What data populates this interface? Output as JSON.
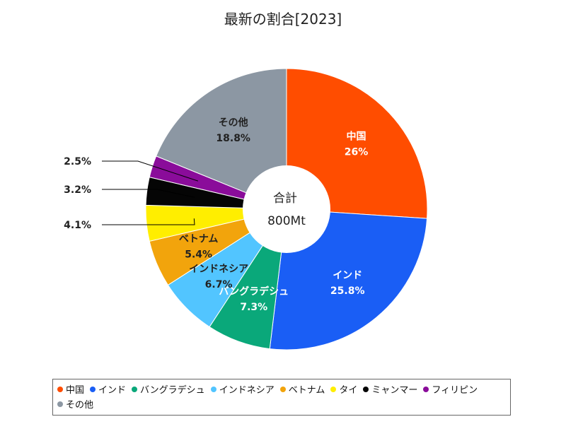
{
  "chart_data": {
    "type": "pie",
    "title": "最新の割合[2023]",
    "center_label_line1": "合計",
    "center_label_line2": "800Mt",
    "slices": [
      {
        "name": "中国",
        "label": "中国",
        "value": 26,
        "pct_label": "26%",
        "color": "#ff4d00",
        "label_color": "#ffffff",
        "label_mode": "inside"
      },
      {
        "name": "インド",
        "label": "インド",
        "value": 25.8,
        "pct_label": "25.8%",
        "color": "#1a5ef5",
        "label_color": "#ffffff",
        "label_mode": "inside"
      },
      {
        "name": "バングラデシュ",
        "label": "バングラデシュ",
        "value": 7.3,
        "pct_label": "7.3%",
        "color": "#0aa87a",
        "label_color": "#ffffff",
        "label_mode": "inside"
      },
      {
        "name": "インドネシア",
        "label": "インドネシア",
        "value": 6.7,
        "pct_label": "6.7%",
        "color": "#52c5ff",
        "label_color": "#222222",
        "label_mode": "inside"
      },
      {
        "name": "ベトナム",
        "label": "ベトナム",
        "value": 5.4,
        "pct_label": "5.4%",
        "color": "#f2a40c",
        "label_color": "#222222",
        "label_mode": "inside"
      },
      {
        "name": "タイ",
        "label": "",
        "value": 4.1,
        "pct_label": "4.1%",
        "color": "#ffee00",
        "label_color": "#222222",
        "label_mode": "outside"
      },
      {
        "name": "ミャンマー",
        "label": "",
        "value": 3.2,
        "pct_label": "3.2%",
        "color": "#050505",
        "label_color": "#222222",
        "label_mode": "outside"
      },
      {
        "name": "フィリピン",
        "label": "",
        "value": 2.5,
        "pct_label": "2.5%",
        "color": "#8a0c9a",
        "label_color": "#222222",
        "label_mode": "outside"
      },
      {
        "name": "その他",
        "label": "その他",
        "value": 18.8,
        "pct_label": "18.8%",
        "color": "#8c97a3",
        "label_color": "#222222",
        "label_mode": "inside"
      }
    ],
    "legend_position": "bottom"
  }
}
